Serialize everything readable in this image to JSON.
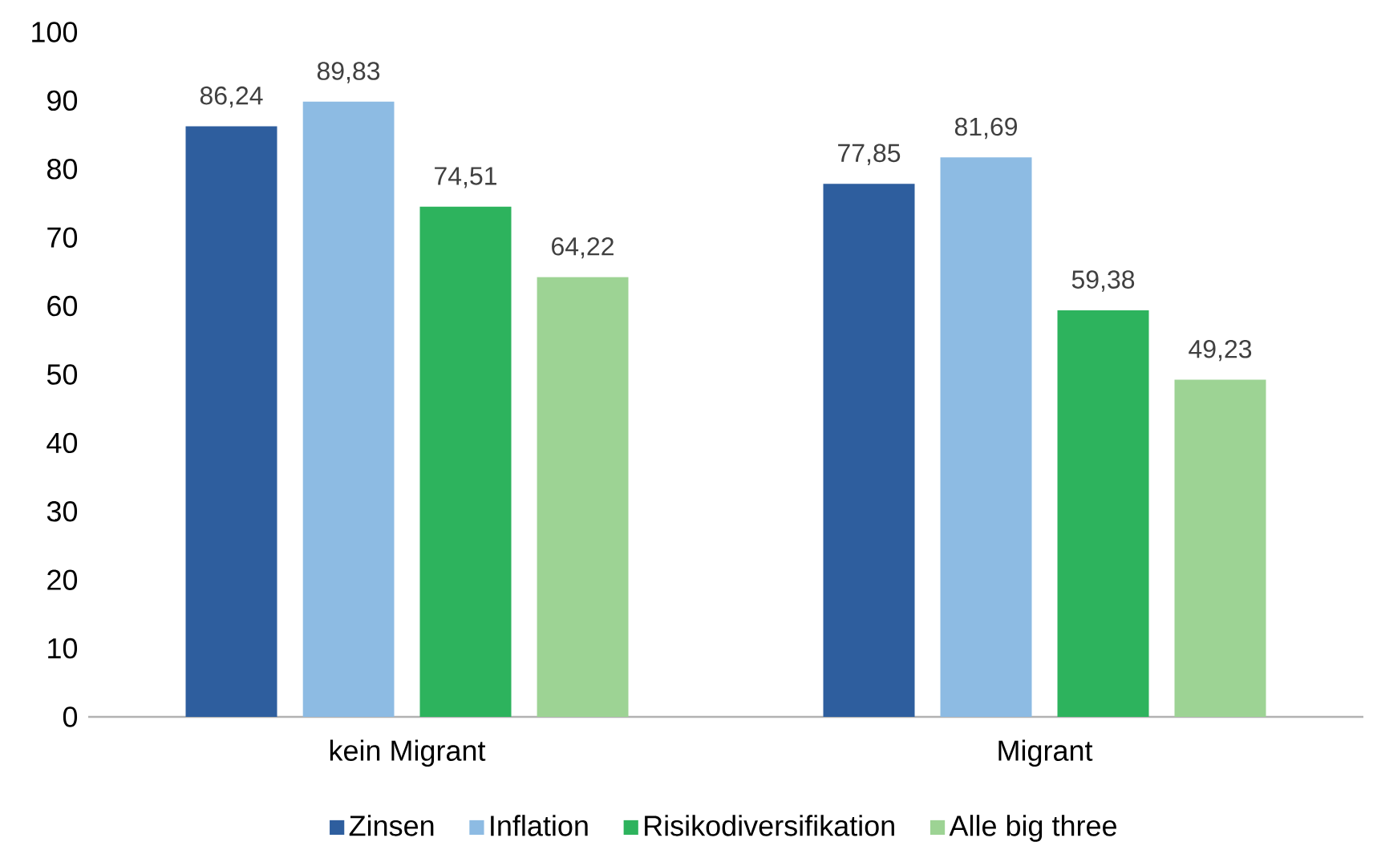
{
  "chart_data": {
    "type": "bar",
    "categories": [
      "kein Migrant",
      "Migrant"
    ],
    "series": [
      {
        "name": "Zinsen",
        "color": "#2e5e9e",
        "values": [
          86.24,
          77.85
        ],
        "value_labels": [
          "86,24",
          "77,85"
        ]
      },
      {
        "name": "Inflation",
        "color": "#8dbbe3",
        "values": [
          89.83,
          81.69
        ],
        "value_labels": [
          "89,83",
          "81,69"
        ]
      },
      {
        "name": "Risikodiversifikation",
        "color": "#2db35d",
        "values": [
          74.51,
          59.38
        ],
        "value_labels": [
          "74,51",
          "59,38"
        ]
      },
      {
        "name": "Alle big three",
        "color": "#9dd394",
        "values": [
          64.22,
          49.23
        ],
        "value_labels": [
          "64,22",
          "49,23"
        ]
      }
    ],
    "ylim": [
      0,
      100
    ],
    "yticks": [
      0,
      10,
      20,
      30,
      40,
      50,
      60,
      70,
      80,
      90,
      100
    ],
    "grid": false,
    "legend": "bottom"
  }
}
